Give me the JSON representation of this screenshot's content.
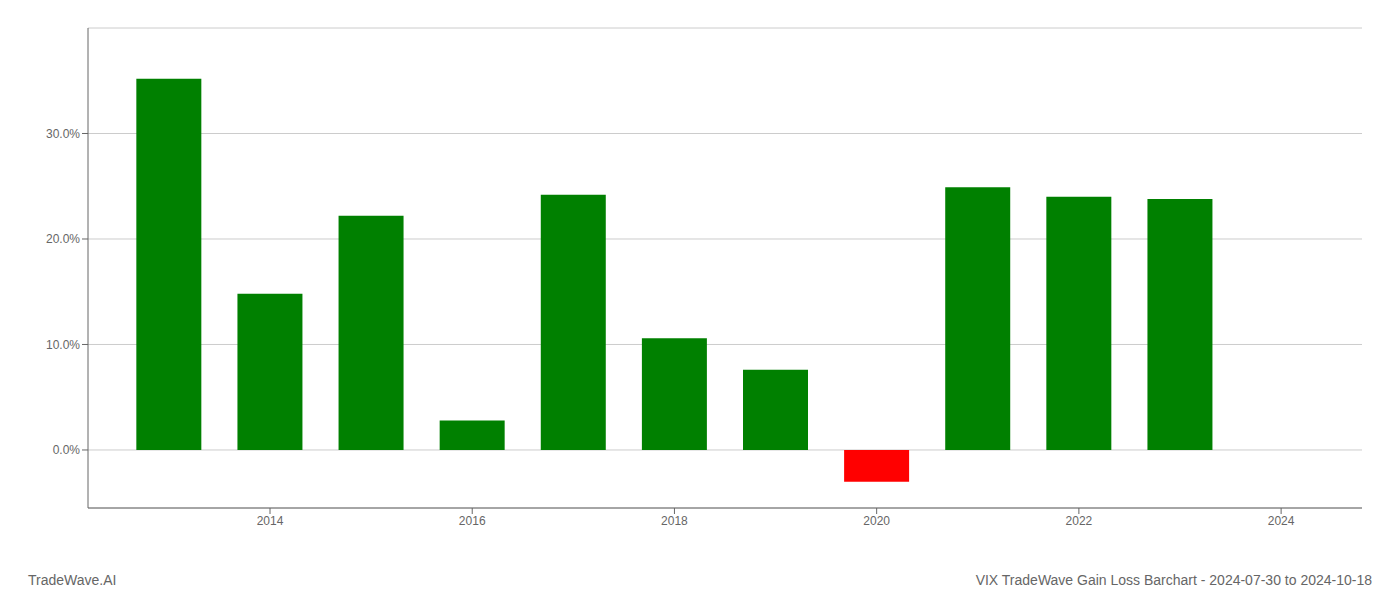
{
  "chart_data": {
    "type": "bar",
    "title": "VIX TradeWave Gain Loss Barchart - 2024-07-30 to 2024-10-18",
    "annotations": [
      "TradeWave.AI"
    ],
    "x": [
      2013,
      2014,
      2015,
      2016,
      2017,
      2018,
      2019,
      2020,
      2021,
      2022,
      2023
    ],
    "values": [
      0.352,
      0.148,
      0.222,
      0.028,
      0.242,
      0.106,
      0.076,
      -0.03,
      0.249,
      0.24,
      0.238
    ],
    "colors": [
      "#008000",
      "#008000",
      "#008000",
      "#008000",
      "#008000",
      "#008000",
      "#008000",
      "#ff0000",
      "#008000",
      "#008000",
      "#008000"
    ],
    "xlim": [
      2012.2,
      2024.8
    ],
    "xticks": [
      2014,
      2016,
      2018,
      2020,
      2022,
      2024
    ],
    "ylim": [
      -0.055,
      0.4
    ],
    "yticks": [
      {
        "value": 0.0,
        "label": "0.0%"
      },
      {
        "value": 0.1,
        "label": "10.0%"
      },
      {
        "value": 0.2,
        "label": "20.0%"
      },
      {
        "value": 0.3,
        "label": "30.0%"
      }
    ],
    "grid": "y"
  }
}
